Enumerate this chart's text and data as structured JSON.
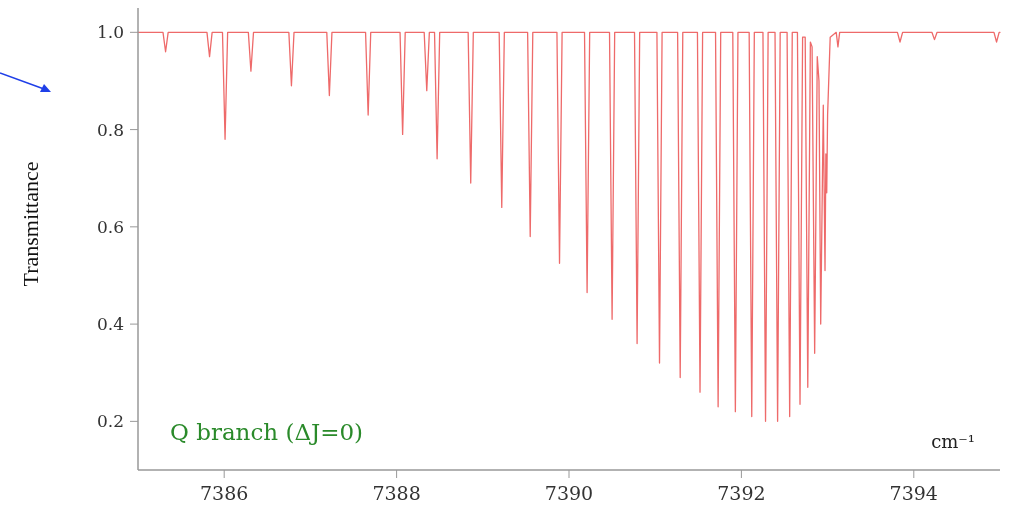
{
  "chart_data": {
    "type": "line",
    "xlabel": "cm⁻¹",
    "ylabel": "Transmittance",
    "annotations": [
      "Q branch (ΔJ=0)"
    ],
    "xlim": [
      7385,
      7395
    ],
    "ylim": [
      0.1,
      1.05
    ],
    "xticks": [
      7386,
      7388,
      7390,
      7392,
      7394
    ],
    "yticks": [
      0.2,
      0.4,
      0.6,
      0.8,
      {
        "value": 1,
        "label": "1.0"
      }
    ],
    "grid": false,
    "marker": "none",
    "line_style": "solid",
    "series": [
      {
        "color": "#ee6a6a",
        "x": [
          7385.0,
          7385.29,
          7385.32,
          7385.35,
          7385.8,
          7385.83,
          7385.86,
          7385.98,
          7386.01,
          7386.04,
          7386.28,
          7386.31,
          7386.34,
          7386.75,
          7386.78,
          7386.81,
          7387.19,
          7387.22,
          7387.25,
          7387.64,
          7387.67,
          7387.7,
          7388.04,
          7388.07,
          7388.1,
          7388.32,
          7388.35,
          7388.38,
          7388.44,
          7388.47,
          7388.5,
          7388.83,
          7388.86,
          7388.89,
          7389.19,
          7389.22,
          7389.25,
          7389.52,
          7389.55,
          7389.58,
          7389.86,
          7389.89,
          7389.92,
          7390.18,
          7390.21,
          7390.24,
          7390.47,
          7390.5,
          7390.53,
          7390.76,
          7390.79,
          7390.82,
          7391.02,
          7391.05,
          7391.08,
          7391.26,
          7391.29,
          7391.32,
          7391.49,
          7391.52,
          7391.55,
          7391.7,
          7391.73,
          7391.76,
          7391.9,
          7391.93,
          7391.96,
          7392.09,
          7392.12,
          7392.15,
          7392.25,
          7392.28,
          7392.31,
          7392.39,
          7392.42,
          7392.45,
          7392.53,
          7392.56,
          7392.59,
          7392.65,
          7392.68,
          7392.71,
          7392.74,
          7392.77,
          7392.8,
          7392.82,
          7392.85,
          7392.88,
          7392.9,
          7392.92,
          7392.95,
          7392.97,
          7392.98,
          7392.99,
          7392.995,
          7393.0,
          7393.03,
          7393.1,
          7393.12,
          7393.14,
          7393.81,
          7393.84,
          7393.87,
          7394.21,
          7394.24,
          7394.27,
          7394.93,
          7394.96,
          7394.99,
          7395.0
        ],
        "values": [
          1.0,
          1.0,
          0.96,
          1.0,
          1.0,
          0.95,
          1.0,
          1.0,
          0.78,
          1.0,
          1.0,
          0.92,
          1.0,
          1.0,
          0.89,
          1.0,
          1.0,
          0.87,
          1.0,
          1.0,
          0.83,
          1.0,
          1.0,
          0.79,
          1.0,
          1.0,
          0.88,
          1.0,
          1.0,
          0.74,
          1.0,
          1.0,
          0.69,
          1.0,
          1.0,
          0.64,
          1.0,
          1.0,
          0.58,
          1.0,
          1.0,
          0.525,
          1.0,
          1.0,
          0.465,
          1.0,
          1.0,
          0.41,
          1.0,
          1.0,
          0.36,
          1.0,
          1.0,
          0.32,
          1.0,
          1.0,
          0.29,
          1.0,
          1.0,
          0.26,
          1.0,
          1.0,
          0.23,
          1.0,
          1.0,
          0.22,
          1.0,
          1.0,
          0.21,
          1.0,
          1.0,
          0.2,
          1.0,
          1.0,
          0.2,
          1.0,
          1.0,
          0.21,
          1.0,
          1.0,
          0.235,
          0.99,
          0.99,
          0.27,
          0.98,
          0.97,
          0.34,
          0.95,
          0.9,
          0.4,
          0.85,
          0.51,
          0.75,
          0.67,
          0.75,
          0.83,
          0.99,
          1.0,
          0.97,
          1.0,
          1.0,
          0.98,
          1.0,
          1.0,
          0.985,
          1.0,
          1.0,
          0.98,
          1.0,
          1.0
        ]
      }
    ]
  }
}
